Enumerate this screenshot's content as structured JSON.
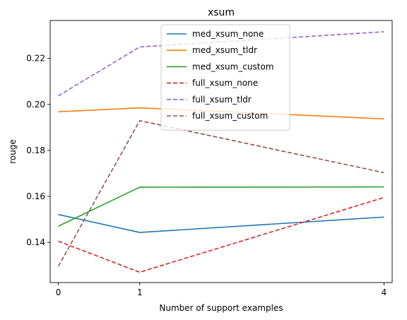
{
  "chart_data": {
    "type": "line",
    "title": "xsum",
    "xlabel": "Number of support examples",
    "ylabel": "rouge",
    "x": [
      0,
      1,
      4
    ],
    "xticks": [
      0,
      1,
      4
    ],
    "xtick_labels": [
      "0",
      "1",
      "4"
    ],
    "xlim": [
      -0.1,
      4.1
    ],
    "ylim": [
      0.1225,
      0.2365
    ],
    "yticks": [
      0.14,
      0.16,
      0.18,
      0.2,
      0.22
    ],
    "ytick_labels": [
      "0.14",
      "0.16",
      "0.18",
      "0.20",
      "0.22"
    ],
    "grid": false,
    "legend_position": "upper-center",
    "series": [
      {
        "name": "med_xsum_none",
        "values": [
          0.1521,
          0.1443,
          0.151
        ],
        "color": "#1f77b4",
        "dash": "solid"
      },
      {
        "name": "med_xsum_tldr",
        "values": [
          0.1968,
          0.1985,
          0.1937
        ],
        "color": "#ff7f0e",
        "dash": "solid"
      },
      {
        "name": "med_xsum_custom",
        "values": [
          0.147,
          0.164,
          0.1641
        ],
        "color": "#2ca02c",
        "dash": "solid"
      },
      {
        "name": "full_xsum_none",
        "values": [
          0.1405,
          0.127,
          0.1595
        ],
        "color": "#d62728",
        "dash": "dashed"
      },
      {
        "name": "full_xsum_tldr",
        "values": [
          0.2037,
          0.225,
          0.2316
        ],
        "color": "#9467bd",
        "dash": "dashed"
      },
      {
        "name": "full_xsum_custom",
        "values": [
          0.1296,
          0.1929,
          0.1703
        ],
        "color": "#8c564b",
        "dash": "dashed"
      }
    ]
  }
}
